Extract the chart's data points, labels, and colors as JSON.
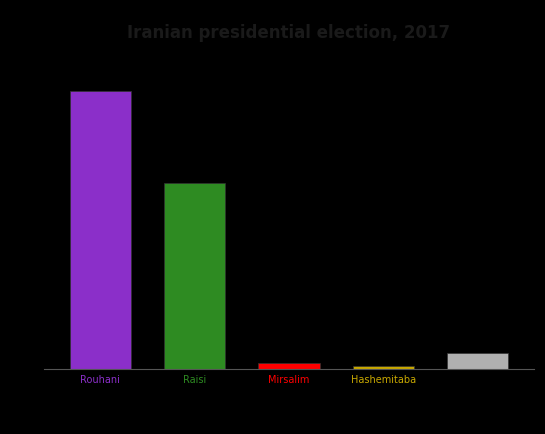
{
  "title": "Iranian presidential election, 2017",
  "candidates": [
    "Rouhani",
    "Raisi",
    "Mirsalim",
    "Hashemitaba",
    ""
  ],
  "votes": [
    23636652,
    15835731,
    478215,
    215450,
    1300000
  ],
  "bar_colors": [
    "#8b2fc9",
    "#2e8b22",
    "#ff0000",
    "#c8a800",
    "#b0b0b0"
  ],
  "label_colors": [
    "#8b2fc9",
    "#2e8b22",
    "#ff0000",
    "#c8a800",
    "#b0b0b0"
  ],
  "background_color": "#000000",
  "title_color": "#1a1a1a",
  "ylim": [
    0,
    27000000
  ],
  "figsize": [
    5.45,
    4.35
  ],
  "dpi": 100,
  "bar_width": 0.65,
  "xlabel_fontsize": 7,
  "title_fontsize": 12
}
